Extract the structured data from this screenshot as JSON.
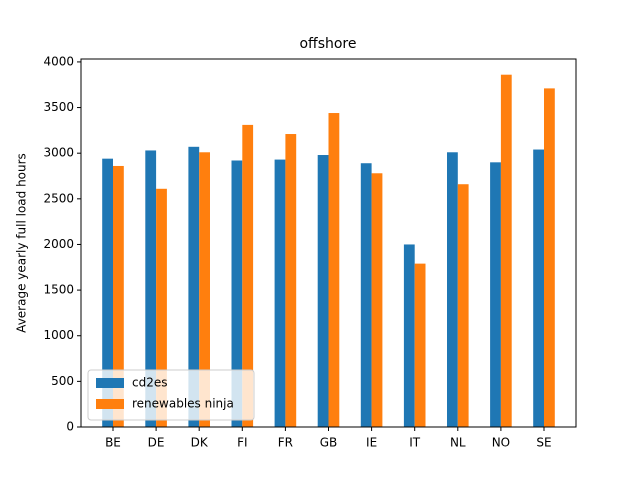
{
  "chart_data": {
    "type": "bar",
    "title": "offshore",
    "y_label": "Average yearly full load hours",
    "categories": [
      "BE",
      "DE",
      "DK",
      "FI",
      "FR",
      "GB",
      "IE",
      "IT",
      "NL",
      "NO",
      "SE"
    ],
    "series": [
      {
        "name": "cd2es",
        "color": "#1f77b4",
        "values": [
          2940,
          3030,
          3070,
          2920,
          2930,
          2980,
          2890,
          2000,
          3010,
          2900,
          3040
        ]
      },
      {
        "name": "renewables ninja",
        "color": "#ff7f0e",
        "values": [
          2860,
          2610,
          3010,
          3310,
          3210,
          3440,
          2780,
          1790,
          2660,
          3860,
          3710
        ]
      }
    ],
    "ylim": [
      0,
      4032
    ],
    "yticks": [
      0,
      500,
      1000,
      1500,
      2000,
      2500,
      3000,
      3500,
      4000
    ],
    "legend": "lower left"
  }
}
